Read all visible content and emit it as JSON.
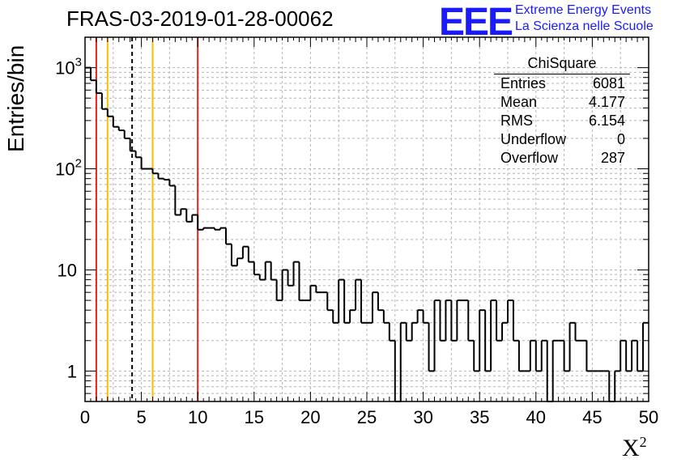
{
  "title": "FRAS-03-2019-01-28-00062",
  "ylabel": "Entries/bin",
  "xlabel_base": "X",
  "xlabel_sup": "2",
  "logo": {
    "text": "EEE",
    "line1": "Extreme Energy Events",
    "line2": "La Scienza nelle Scuole",
    "color": "#1a1aff"
  },
  "stats": {
    "title": "ChiSquare",
    "rows": [
      {
        "label": "Entries",
        "value": "6081"
      },
      {
        "label": "Mean",
        "value": "4.177"
      },
      {
        "label": "RMS",
        "value": "6.154"
      },
      {
        "label": "Underflow",
        "value": "0"
      },
      {
        "label": "Overflow",
        "value": "287"
      }
    ]
  },
  "chart_data": {
    "type": "histogram",
    "x_range": [
      0,
      50
    ],
    "y_range": [
      0.5,
      2000
    ],
    "y_scale": "log",
    "grid": true,
    "bin_width": 0.5,
    "x_ticks": [
      "0",
      "5",
      "10",
      "15",
      "20",
      "25",
      "30",
      "35",
      "40",
      "45",
      "50"
    ],
    "y_ticks": [
      {
        "value": 1,
        "base": "1",
        "exp": ""
      },
      {
        "value": 10,
        "base": "10",
        "exp": ""
      },
      {
        "value": 100,
        "base": "10",
        "exp": "2"
      },
      {
        "value": 1000,
        "base": "10",
        "exp": "3"
      }
    ],
    "counts": [
      1000,
      750,
      560,
      390,
      330,
      260,
      240,
      200,
      150,
      130,
      100,
      100,
      90,
      80,
      78,
      68,
      35,
      40,
      30,
      35,
      25,
      26,
      26,
      25,
      26,
      18,
      11,
      13,
      17,
      12,
      9,
      8,
      12,
      8,
      5,
      10,
      7,
      12,
      5,
      5,
      7,
      6,
      6,
      4,
      3,
      8,
      3,
      4,
      8,
      3,
      3,
      6,
      4,
      3,
      2,
      0,
      3,
      2,
      3,
      4,
      3,
      1,
      5,
      2,
      5,
      2,
      5,
      5,
      2,
      1,
      4,
      1,
      5,
      2,
      3,
      5,
      2,
      1,
      1,
      2,
      1,
      2,
      0,
      2,
      2,
      1,
      3,
      2,
      2,
      1,
      1,
      1,
      1,
      0,
      1,
      2,
      1,
      2,
      1,
      3
    ],
    "vertical_lines": [
      {
        "x": 1,
        "color": "#e8241a",
        "style": "solid"
      },
      {
        "x": 2,
        "color": "#f5c000",
        "style": "solid"
      },
      {
        "x": 4.177,
        "color": "#000000",
        "style": "dashed"
      },
      {
        "x": 6,
        "color": "#f5c000",
        "style": "solid"
      },
      {
        "x": 10,
        "color": "#e8241a",
        "style": "solid"
      }
    ]
  }
}
